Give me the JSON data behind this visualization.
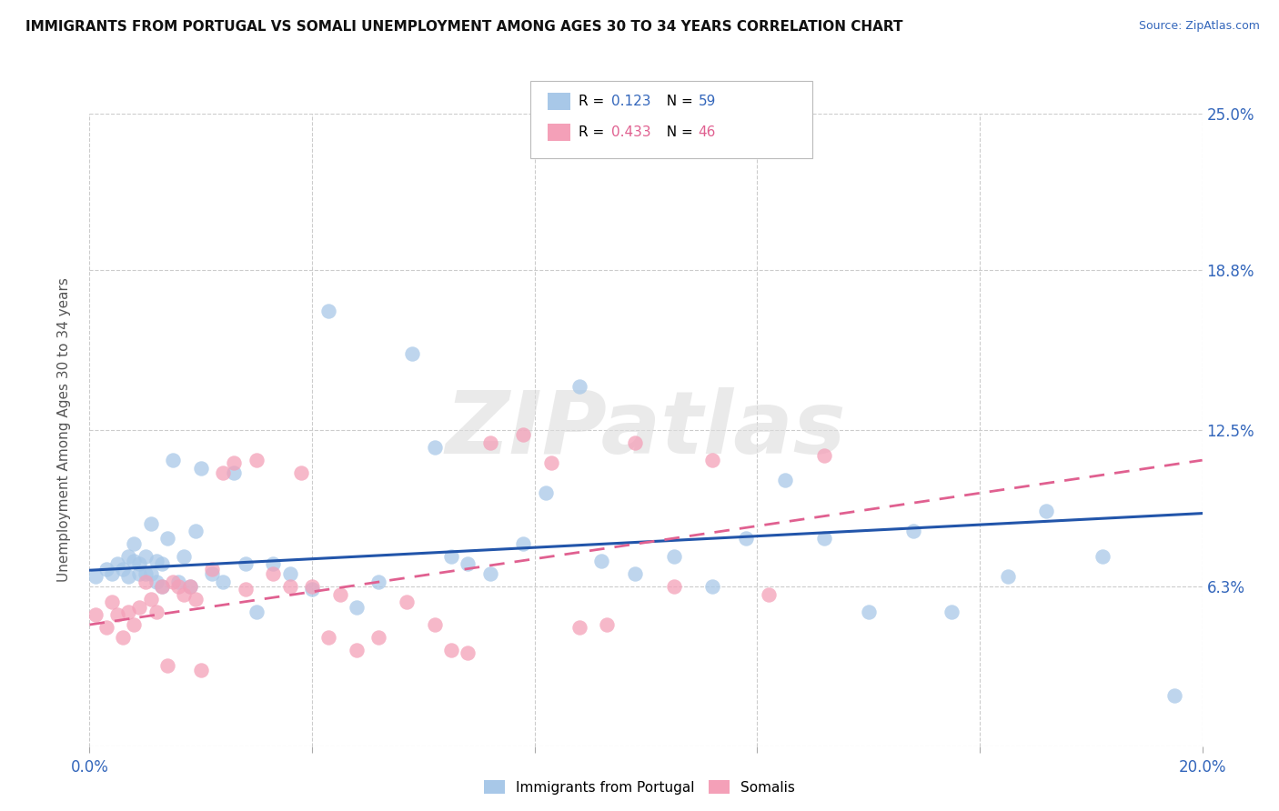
{
  "title": "IMMIGRANTS FROM PORTUGAL VS SOMALI UNEMPLOYMENT AMONG AGES 30 TO 34 YEARS CORRELATION CHART",
  "source": "Source: ZipAtlas.com",
  "ylabel": "Unemployment Among Ages 30 to 34 years",
  "xlim": [
    0.0,
    0.2
  ],
  "ylim": [
    0.0,
    0.25
  ],
  "xticks": [
    0.0,
    0.04,
    0.08,
    0.12,
    0.16,
    0.2
  ],
  "xticklabels": [
    "0.0%",
    "",
    "",
    "",
    "",
    "20.0%"
  ],
  "yticks": [
    0.0,
    0.063,
    0.125,
    0.188,
    0.25
  ],
  "yticklabels": [
    "",
    "6.3%",
    "12.5%",
    "18.8%",
    "25.0%"
  ],
  "blue_color": "#A8C8E8",
  "pink_color": "#F4A0B8",
  "blue_line_color": "#2255AA",
  "pink_line_color": "#E06090",
  "watermark": "ZIPatlas",
  "blue_x": [
    0.001,
    0.003,
    0.004,
    0.005,
    0.006,
    0.007,
    0.007,
    0.008,
    0.008,
    0.009,
    0.009,
    0.01,
    0.01,
    0.011,
    0.011,
    0.012,
    0.012,
    0.013,
    0.013,
    0.014,
    0.015,
    0.016,
    0.017,
    0.018,
    0.019,
    0.02,
    0.022,
    0.024,
    0.026,
    0.028,
    0.03,
    0.033,
    0.036,
    0.04,
    0.043,
    0.048,
    0.052,
    0.058,
    0.062,
    0.065,
    0.068,
    0.072,
    0.078,
    0.082,
    0.088,
    0.092,
    0.098,
    0.105,
    0.112,
    0.118,
    0.125,
    0.132,
    0.14,
    0.148,
    0.155,
    0.165,
    0.172,
    0.182,
    0.195
  ],
  "blue_y": [
    0.067,
    0.07,
    0.068,
    0.072,
    0.07,
    0.075,
    0.067,
    0.073,
    0.08,
    0.068,
    0.072,
    0.075,
    0.068,
    0.088,
    0.068,
    0.073,
    0.065,
    0.072,
    0.063,
    0.082,
    0.113,
    0.065,
    0.075,
    0.063,
    0.085,
    0.11,
    0.068,
    0.065,
    0.108,
    0.072,
    0.053,
    0.072,
    0.068,
    0.062,
    0.172,
    0.055,
    0.065,
    0.155,
    0.118,
    0.075,
    0.072,
    0.068,
    0.08,
    0.1,
    0.142,
    0.073,
    0.068,
    0.075,
    0.063,
    0.082,
    0.105,
    0.082,
    0.053,
    0.085,
    0.053,
    0.067,
    0.093,
    0.075,
    0.02
  ],
  "pink_x": [
    0.001,
    0.003,
    0.004,
    0.005,
    0.006,
    0.007,
    0.008,
    0.009,
    0.01,
    0.011,
    0.012,
    0.013,
    0.014,
    0.015,
    0.016,
    0.017,
    0.018,
    0.019,
    0.02,
    0.022,
    0.024,
    0.026,
    0.028,
    0.03,
    0.033,
    0.036,
    0.038,
    0.04,
    0.043,
    0.045,
    0.048,
    0.052,
    0.057,
    0.062,
    0.065,
    0.068,
    0.072,
    0.078,
    0.083,
    0.088,
    0.093,
    0.098,
    0.105,
    0.112,
    0.122,
    0.132
  ],
  "pink_y": [
    0.052,
    0.047,
    0.057,
    0.052,
    0.043,
    0.053,
    0.048,
    0.055,
    0.065,
    0.058,
    0.053,
    0.063,
    0.032,
    0.065,
    0.063,
    0.06,
    0.063,
    0.058,
    0.03,
    0.07,
    0.108,
    0.112,
    0.062,
    0.113,
    0.068,
    0.063,
    0.108,
    0.063,
    0.043,
    0.06,
    0.038,
    0.043,
    0.057,
    0.048,
    0.038,
    0.037,
    0.12,
    0.123,
    0.112,
    0.047,
    0.048,
    0.12,
    0.063,
    0.113,
    0.06,
    0.115
  ],
  "blue_trend_x": [
    0.0,
    0.2
  ],
  "blue_trend_y": [
    0.0695,
    0.092
  ],
  "pink_trend_x": [
    0.0,
    0.2
  ],
  "pink_trend_y": [
    0.048,
    0.113
  ]
}
